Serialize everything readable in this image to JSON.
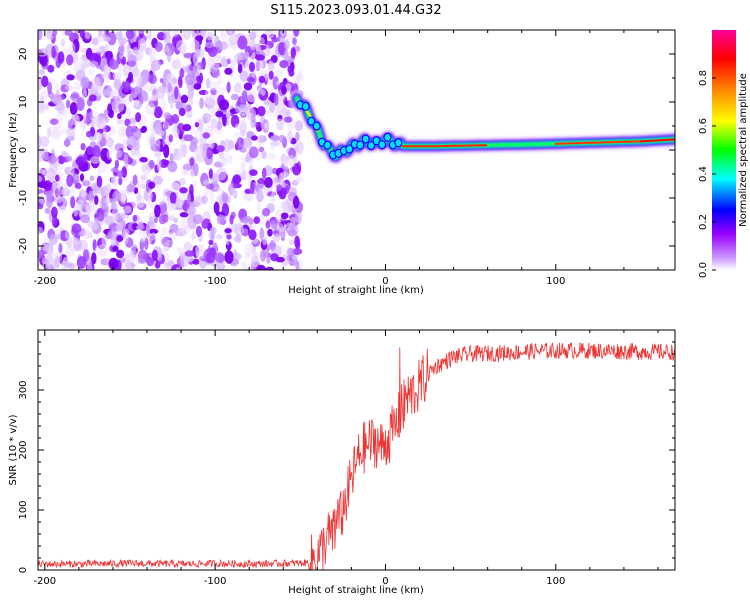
{
  "title": "S115.2023.093.01.44.G32",
  "chart_data": [
    {
      "type": "heatmap",
      "xlabel": "Height of straight line (km)",
      "ylabel": "Frequency (Hz)",
      "xlim": [
        -204,
        170
      ],
      "ylim": [
        -25,
        25
      ],
      "x_ticks": [
        -200,
        -100,
        0,
        100
      ],
      "y_ticks": [
        -20,
        -10,
        0,
        10,
        20
      ],
      "noise_region_x": [
        -204,
        -50
      ],
      "line_track": [
        {
          "x": -52,
          "y": 11
        },
        {
          "x": -48,
          "y": 9
        },
        {
          "x": -44,
          "y": 7
        },
        {
          "x": -40,
          "y": 4
        },
        {
          "x": -36,
          "y": 1.5
        },
        {
          "x": -32,
          "y": -0.5
        },
        {
          "x": -28,
          "y": -1
        },
        {
          "x": -24,
          "y": 0
        },
        {
          "x": -20,
          "y": 0.5
        },
        {
          "x": -15,
          "y": 1.5
        },
        {
          "x": -10,
          "y": 1.8
        },
        {
          "x": -5,
          "y": 1.2
        },
        {
          "x": 0,
          "y": 2.2
        },
        {
          "x": 5,
          "y": 1.5
        },
        {
          "x": 10,
          "y": 0.8
        },
        {
          "x": 30,
          "y": 0.8
        },
        {
          "x": 60,
          "y": 1.0
        },
        {
          "x": 90,
          "y": 1.2
        },
        {
          "x": 120,
          "y": 1.5
        },
        {
          "x": 150,
          "y": 1.8
        },
        {
          "x": 170,
          "y": 2.2
        }
      ],
      "colorbar": {
        "label": "Normalized spectral amplitude",
        "ticks": [
          0.0,
          0.2,
          0.4,
          0.6,
          0.8
        ],
        "range": [
          0,
          1
        ],
        "colors": [
          "#ffffff",
          "#9900ff",
          "#0000ff",
          "#00ffff",
          "#00ff00",
          "#ffff00",
          "#ff8800",
          "#ff0000",
          "#ff0099"
        ]
      }
    },
    {
      "type": "line",
      "xlabel": "Height of straight line (km)",
      "ylabel": "SNR (10 * v/v)",
      "xlim": [
        -204,
        170
      ],
      "ylim": [
        0,
        400
      ],
      "x_ticks": [
        -200,
        -100,
        0,
        100
      ],
      "y_ticks": [
        0,
        100,
        200,
        300
      ],
      "color": "#ee3333",
      "series": [
        {
          "x": [
            -204,
            -180,
            -150,
            -120,
            -100,
            -80,
            -60,
            -45,
            -38,
            -34,
            -30,
            -26,
            -22,
            -18,
            -14,
            -10,
            -6,
            -2,
            2,
            6,
            10,
            14,
            18,
            22,
            26,
            30,
            40,
            50,
            70,
            90,
            110,
            130,
            150,
            170
          ],
          "y": [
            10,
            10,
            11,
            10,
            11,
            10,
            11,
            12,
            30,
            55,
            60,
            90,
            130,
            170,
            200,
            210,
            215,
            205,
            220,
            240,
            270,
            290,
            300,
            315,
            330,
            340,
            355,
            360,
            362,
            365,
            366,
            365,
            364,
            363
          ]
        }
      ]
    }
  ]
}
